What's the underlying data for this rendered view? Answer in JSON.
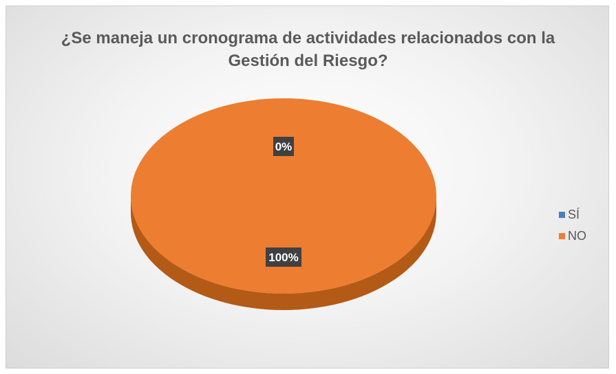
{
  "chart_data": {
    "type": "pie",
    "title": "¿Se maneja un cronograma de actividades relacionados con la Gestión del Riesgo?",
    "categories": [
      "SÍ",
      "NO"
    ],
    "values": [
      0,
      100
    ],
    "data_labels": [
      "0%",
      "100%"
    ],
    "colors": [
      "#4a7fbf",
      "#ed7d31"
    ],
    "depth_color": "#b35a16",
    "label_bg": "#404040",
    "style": "3d",
    "legend": {
      "position": "right",
      "entries": [
        "SÍ",
        "NO"
      ]
    }
  }
}
